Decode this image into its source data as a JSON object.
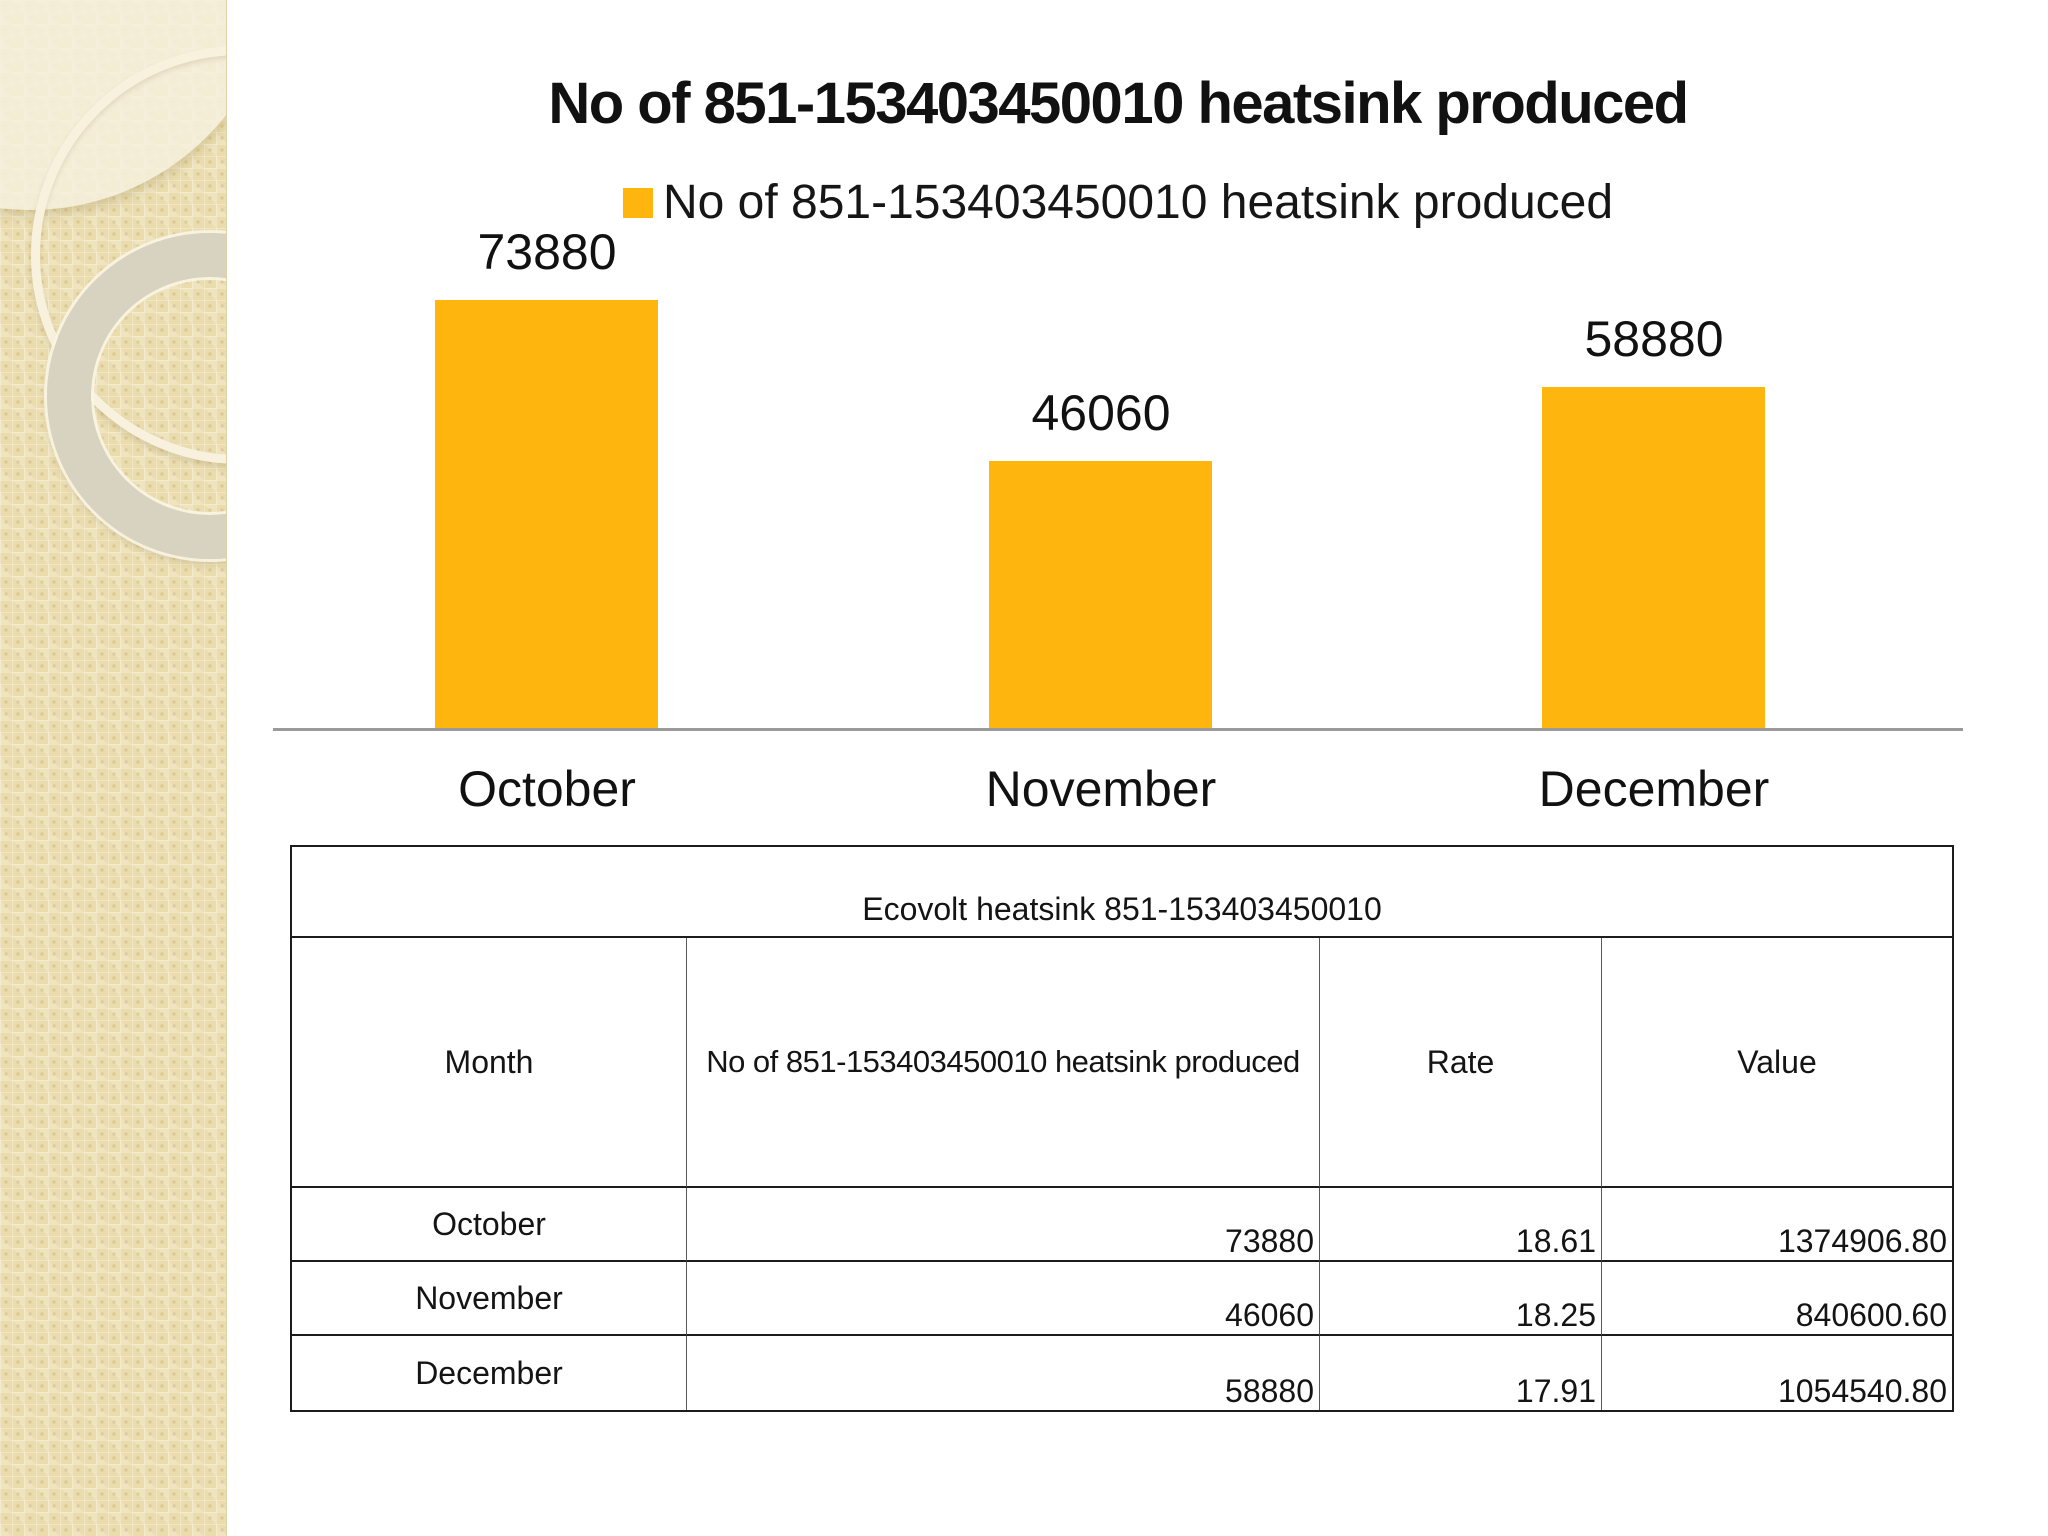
{
  "chart_data": {
    "type": "bar",
    "title": "No of 851-153403450010 heatsink produced",
    "series_name": "No of 851-153403450010 heatsink produced",
    "categories": [
      "October",
      "November",
      "December"
    ],
    "values": [
      73880,
      46060,
      58880
    ],
    "data_labels": [
      "73880",
      "46060",
      "58880"
    ],
    "bar_color": "#FEB60E",
    "axis_line_color": "#9A9A9A",
    "legend_position": "top",
    "grid": false,
    "ylim": [
      0,
      80000
    ]
  },
  "table": {
    "title": "Ecovolt heatsink 851-153403450010",
    "headers": [
      "Month",
      "No of 851-153403450010 heatsink produced",
      "Rate",
      "Value"
    ],
    "rows": [
      {
        "month": "October",
        "produced": "73880",
        "rate": "18.61",
        "value": "1374906.80"
      },
      {
        "month": "November",
        "produced": "46060",
        "rate": "18.25",
        "value": "840600.60"
      },
      {
        "month": "December",
        "produced": "58880",
        "rate": "17.91",
        "value": "1054540.80"
      }
    ]
  }
}
